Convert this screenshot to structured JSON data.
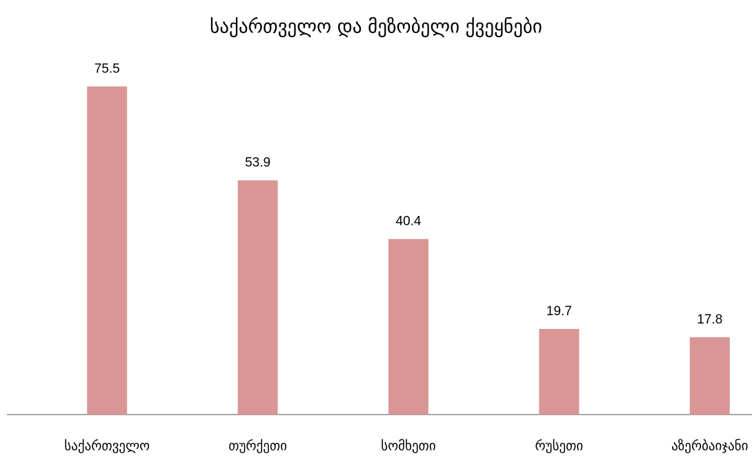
{
  "chart_data": {
    "type": "bar",
    "title": "საქართველო და მეზობელი ქვეყნები",
    "categories": [
      "საქართველო",
      "თურქეთი",
      "სომხეთი",
      "რუსეთი",
      "აზერბაიჯანი"
    ],
    "values": [
      75.5,
      53.9,
      40.4,
      19.7,
      17.8
    ],
    "color": "#d99694",
    "ylim": [
      0,
      80
    ]
  }
}
